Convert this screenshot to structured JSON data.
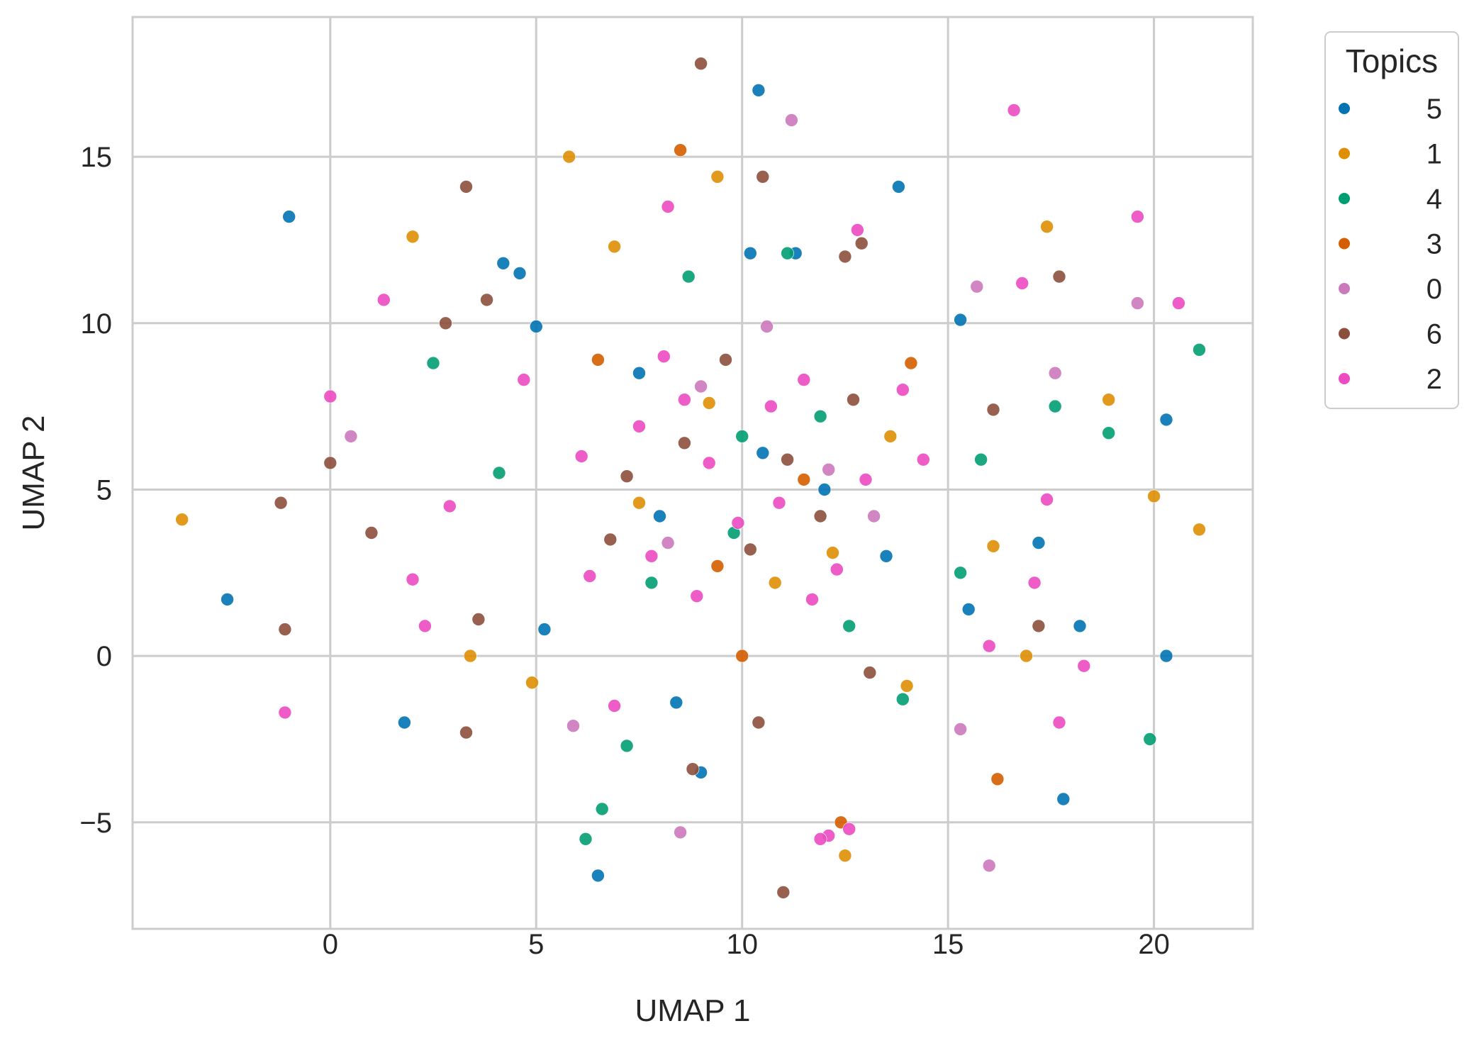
{
  "chart_data": {
    "type": "scatter",
    "title": "",
    "xlabel": "UMAP 1",
    "ylabel": "UMAP 2",
    "xlim": [
      -4.8,
      22.4
    ],
    "ylim": [
      -8.2,
      19.2
    ],
    "xticks": [
      0,
      5,
      10,
      15,
      20
    ],
    "yticks": [
      -5,
      0,
      5,
      10,
      15
    ],
    "xtick_labels": [
      "0",
      "5",
      "10",
      "15",
      "20"
    ],
    "ytick_labels": [
      "−5",
      "0",
      "5",
      "10",
      "15"
    ],
    "grid": true,
    "legend": {
      "title": "Topics",
      "placement": "outside upper right"
    },
    "series": [
      {
        "name": "5",
        "color": "#0173b2",
        "points": [
          [
            -1.0,
            13.2
          ],
          [
            10.4,
            17.0
          ],
          [
            13.8,
            14.1
          ],
          [
            4.2,
            11.8
          ],
          [
            -2.5,
            1.7
          ],
          [
            1.8,
            -2.0
          ],
          [
            6.5,
            -6.6
          ],
          [
            17.8,
            -4.3
          ],
          [
            18.2,
            0.9
          ],
          [
            20.3,
            7.1
          ],
          [
            20.3,
            0.0
          ],
          [
            15.5,
            1.4
          ],
          [
            17.2,
            3.4
          ],
          [
            15.3,
            10.1
          ],
          [
            4.6,
            11.5
          ],
          [
            5.0,
            9.9
          ],
          [
            10.2,
            12.1
          ],
          [
            9.0,
            -3.5
          ],
          [
            5.2,
            0.8
          ],
          [
            8.4,
            -1.4
          ],
          [
            11.3,
            12.1
          ],
          [
            12.0,
            5.0
          ],
          [
            8.0,
            4.2
          ],
          [
            10.5,
            6.1
          ],
          [
            7.5,
            8.5
          ],
          [
            13.5,
            3.0
          ]
        ]
      },
      {
        "name": "1",
        "color": "#de8f05",
        "points": [
          [
            -3.6,
            4.1
          ],
          [
            2.0,
            12.6
          ],
          [
            5.8,
            15.0
          ],
          [
            9.4,
            14.4
          ],
          [
            17.4,
            12.9
          ],
          [
            21.1,
            3.8
          ],
          [
            16.1,
            3.3
          ],
          [
            16.9,
            0.0
          ],
          [
            18.9,
            7.7
          ],
          [
            20.0,
            4.8
          ],
          [
            4.9,
            -0.8
          ],
          [
            3.4,
            0.0
          ],
          [
            14.0,
            -0.9
          ],
          [
            12.5,
            -6.0
          ],
          [
            6.9,
            12.3
          ],
          [
            9.2,
            7.6
          ],
          [
            12.2,
            3.1
          ],
          [
            10.8,
            2.2
          ],
          [
            7.5,
            4.6
          ],
          [
            13.6,
            6.6
          ]
        ]
      },
      {
        "name": "4",
        "color": "#029e73",
        "points": [
          [
            21.1,
            9.2
          ],
          [
            19.9,
            -2.5
          ],
          [
            7.2,
            -2.7
          ],
          [
            6.6,
            -4.6
          ],
          [
            6.2,
            -5.5
          ],
          [
            2.5,
            8.8
          ],
          [
            18.9,
            6.7
          ],
          [
            17.6,
            7.5
          ],
          [
            15.3,
            2.5
          ],
          [
            8.7,
            11.4
          ],
          [
            11.1,
            12.1
          ],
          [
            13.9,
            -1.3
          ],
          [
            15.8,
            5.9
          ],
          [
            4.1,
            5.5
          ],
          [
            12.6,
            0.9
          ],
          [
            9.8,
            3.7
          ],
          [
            11.9,
            7.2
          ],
          [
            7.8,
            2.2
          ],
          [
            10.0,
            6.6
          ]
        ]
      },
      {
        "name": "3",
        "color": "#d55e00",
        "points": [
          [
            8.5,
            15.2
          ],
          [
            16.2,
            -3.7
          ],
          [
            14.1,
            8.8
          ],
          [
            12.4,
            -5.0
          ],
          [
            10.0,
            0.0
          ],
          [
            6.5,
            8.9
          ],
          [
            11.5,
            5.3
          ],
          [
            9.4,
            2.7
          ]
        ]
      },
      {
        "name": "0",
        "color": "#cc78bc",
        "points": [
          [
            0.5,
            6.6
          ],
          [
            16.0,
            -6.3
          ],
          [
            19.6,
            10.6
          ],
          [
            15.3,
            -2.2
          ],
          [
            17.6,
            8.5
          ],
          [
            8.5,
            -5.3
          ],
          [
            5.9,
            -2.1
          ],
          [
            15.7,
            11.1
          ],
          [
            11.2,
            16.1
          ],
          [
            12.1,
            5.6
          ],
          [
            9.0,
            8.1
          ],
          [
            8.2,
            3.4
          ],
          [
            13.2,
            4.2
          ],
          [
            10.6,
            9.9
          ]
        ]
      },
      {
        "name": "6",
        "color": "#8c4f3c",
        "points": [
          [
            9.0,
            17.8
          ],
          [
            10.5,
            14.4
          ],
          [
            3.3,
            14.1
          ],
          [
            2.8,
            10.0
          ],
          [
            0.0,
            5.8
          ],
          [
            -1.2,
            4.6
          ],
          [
            -1.1,
            0.8
          ],
          [
            3.3,
            -2.3
          ],
          [
            11.0,
            -7.1
          ],
          [
            17.7,
            11.4
          ],
          [
            17.2,
            0.9
          ],
          [
            16.1,
            7.4
          ],
          [
            12.9,
            12.4
          ],
          [
            3.8,
            10.7
          ],
          [
            1.0,
            3.7
          ],
          [
            3.6,
            1.1
          ],
          [
            12.5,
            12.0
          ],
          [
            11.1,
            5.9
          ],
          [
            8.6,
            6.4
          ],
          [
            10.2,
            3.2
          ],
          [
            7.2,
            5.4
          ],
          [
            12.7,
            7.7
          ],
          [
            9.6,
            8.9
          ],
          [
            6.8,
            3.5
          ],
          [
            11.9,
            4.2
          ],
          [
            8.8,
            -3.4
          ],
          [
            13.1,
            -0.5
          ],
          [
            10.4,
            -2.0
          ]
        ]
      },
      {
        "name": "2",
        "color": "#ec4bc1",
        "points": [
          [
            16.6,
            16.4
          ],
          [
            19.6,
            13.2
          ],
          [
            0.0,
            7.8
          ],
          [
            1.3,
            10.7
          ],
          [
            -1.1,
            -1.7
          ],
          [
            2.0,
            2.3
          ],
          [
            2.3,
            0.9
          ],
          [
            8.2,
            13.5
          ],
          [
            12.8,
            12.8
          ],
          [
            18.3,
            -0.3
          ],
          [
            17.7,
            -2.0
          ],
          [
            16.8,
            11.2
          ],
          [
            20.6,
            10.6
          ],
          [
            16.0,
            0.3
          ],
          [
            17.1,
            2.2
          ],
          [
            17.4,
            4.7
          ],
          [
            12.1,
            -5.4
          ],
          [
            12.6,
            -5.2
          ],
          [
            11.9,
            -5.5
          ],
          [
            6.9,
            -1.5
          ],
          [
            8.6,
            7.7
          ],
          [
            10.9,
            4.6
          ],
          [
            12.3,
            2.6
          ],
          [
            9.2,
            5.8
          ],
          [
            7.8,
            3.0
          ],
          [
            11.5,
            8.3
          ],
          [
            9.9,
            4.0
          ],
          [
            6.1,
            6.0
          ],
          [
            13.0,
            5.3
          ],
          [
            8.1,
            9.0
          ],
          [
            10.7,
            7.5
          ],
          [
            11.7,
            1.7
          ],
          [
            7.5,
            6.9
          ],
          [
            14.4,
            5.9
          ],
          [
            4.7,
            8.3
          ],
          [
            6.3,
            2.4
          ],
          [
            8.9,
            1.8
          ],
          [
            13.9,
            8.0
          ],
          [
            2.9,
            4.5
          ]
        ]
      }
    ]
  }
}
